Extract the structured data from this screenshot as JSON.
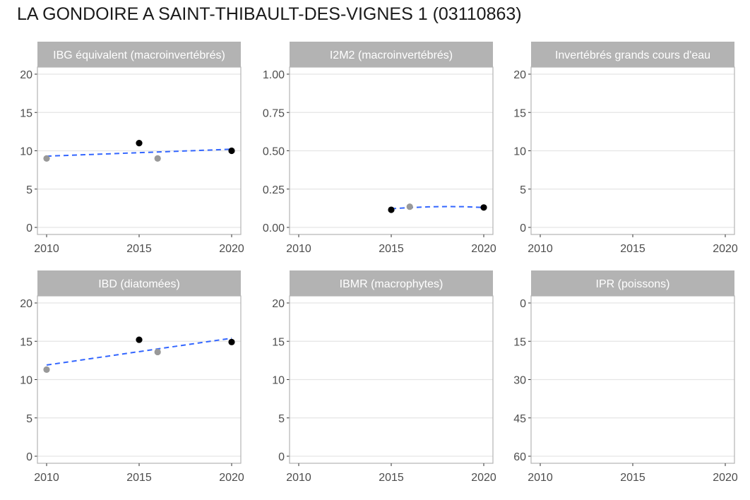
{
  "title": "LA GONDOIRE A SAINT-THIBAULT-DES-VIGNES 1 (03110863)",
  "colors": {
    "strip": "#b3b3b3",
    "panel_border": "#b3b3b3",
    "grid": "#e5e5e5",
    "trend": "#3366ff",
    "point_primary": "#000000",
    "point_secondary": "#999999"
  },
  "chart_data": [
    {
      "type": "scatter",
      "title": "IBG équivalent (macroinvertébrés)",
      "xlim": [
        2010,
        2020
      ],
      "xticks": [
        2010,
        2015,
        2020
      ],
      "ylim": [
        0,
        20
      ],
      "yticks": [
        0,
        5,
        10,
        15,
        20
      ],
      "y_reversed": false,
      "points": [
        {
          "x": 2010,
          "y": 9,
          "group": "secondary"
        },
        {
          "x": 2015,
          "y": 11,
          "group": "primary"
        },
        {
          "x": 2016,
          "y": 9,
          "group": "secondary"
        },
        {
          "x": 2020,
          "y": 10,
          "group": "primary"
        }
      ],
      "trend": {
        "type": "linear",
        "x": [
          2010,
          2020
        ],
        "y": [
          9.3,
          10.2
        ]
      }
    },
    {
      "type": "scatter",
      "title": "I2M2 (macroinvertébrés)",
      "xlim": [
        2010,
        2020
      ],
      "xticks": [
        2010,
        2015,
        2020
      ],
      "ylim": [
        0,
        1
      ],
      "yticks": [
        0,
        0.25,
        0.5,
        0.75,
        1
      ],
      "ytick_labels": [
        "0.00",
        "0.25",
        "0.50",
        "0.75",
        "1.00"
      ],
      "y_reversed": false,
      "points": [
        {
          "x": 2015,
          "y": 0.115,
          "group": "primary"
        },
        {
          "x": 2016,
          "y": 0.135,
          "group": "secondary"
        },
        {
          "x": 2020,
          "y": 0.13,
          "group": "primary"
        }
      ],
      "trend": {
        "type": "smooth",
        "x": [
          2015,
          2016,
          2017,
          2018,
          2019,
          2020
        ],
        "y": [
          0.122,
          0.129,
          0.134,
          0.136,
          0.135,
          0.13
        ]
      }
    },
    {
      "type": "scatter",
      "title": "Invertébrés grands cours d'eau",
      "xlim": [
        2010,
        2020
      ],
      "xticks": [
        2010,
        2015,
        2020
      ],
      "ylim": [
        0,
        20
      ],
      "yticks": [
        0,
        5,
        10,
        15,
        20
      ],
      "y_reversed": false,
      "points": [],
      "trend": null
    },
    {
      "type": "scatter",
      "title": "IBD (diatomées)",
      "xlim": [
        2010,
        2020
      ],
      "xticks": [
        2010,
        2015,
        2020
      ],
      "ylim": [
        0,
        20
      ],
      "yticks": [
        0,
        5,
        10,
        15,
        20
      ],
      "y_reversed": false,
      "points": [
        {
          "x": 2010,
          "y": 11.3,
          "group": "secondary"
        },
        {
          "x": 2015,
          "y": 15.2,
          "group": "primary"
        },
        {
          "x": 2016,
          "y": 13.6,
          "group": "secondary"
        },
        {
          "x": 2020,
          "y": 14.9,
          "group": "primary"
        }
      ],
      "trend": {
        "type": "linear",
        "x": [
          2010,
          2020
        ],
        "y": [
          11.9,
          15.4
        ]
      }
    },
    {
      "type": "scatter",
      "title": "IBMR (macrophytes)",
      "xlim": [
        2010,
        2020
      ],
      "xticks": [
        2010,
        2015,
        2020
      ],
      "ylim": [
        0,
        20
      ],
      "yticks": [
        0,
        5,
        10,
        15,
        20
      ],
      "y_reversed": false,
      "points": [],
      "trend": null
    },
    {
      "type": "scatter",
      "title": "IPR (poissons)",
      "xlim": [
        2010,
        2020
      ],
      "xticks": [
        2010,
        2015,
        2020
      ],
      "ylim": [
        0,
        60
      ],
      "yticks": [
        0,
        15,
        30,
        45,
        60
      ],
      "y_reversed": true,
      "points": [],
      "trend": null
    }
  ]
}
